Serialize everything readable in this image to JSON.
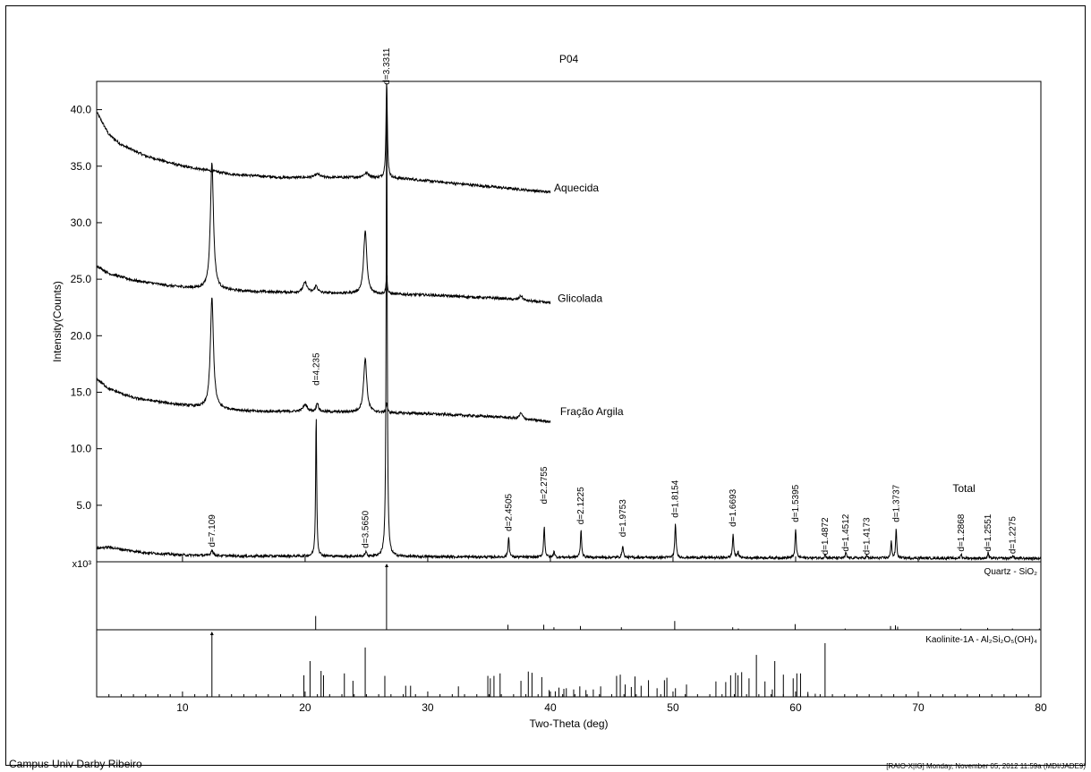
{
  "title": "P04",
  "footer_left": "Campus Univ Darby Ribeiro",
  "footer_right": "[RAIO-X|IG] Monday, November 05, 2012 11:59a (MDI/JADE9)",
  "chart_data": {
    "type": "line",
    "title": "P04",
    "xlabel": "Two-Theta (deg)",
    "ylabel": "Intensity(Counts)",
    "y_multiplier_label": "x10³",
    "xlim": [
      3,
      80
    ],
    "ylim": [
      0,
      42.5
    ],
    "xticks": [
      10,
      20,
      30,
      40,
      50,
      60,
      70,
      80
    ],
    "yticks": [
      5.0,
      10.0,
      15.0,
      20.0,
      25.0,
      30.0,
      35.0,
      40.0
    ],
    "grid": false,
    "legend": "none",
    "series": [
      {
        "name": "Aquecida",
        "x_range": [
          3,
          40
        ],
        "baseline": [
          [
            3,
            39.8
          ],
          [
            4,
            37.8
          ],
          [
            5,
            36.9
          ],
          [
            7,
            35.9
          ],
          [
            10,
            35.0
          ],
          [
            14,
            34.3
          ],
          [
            18,
            34.0
          ],
          [
            24,
            34.0
          ],
          [
            28,
            33.9
          ],
          [
            32,
            33.5
          ],
          [
            36,
            33.1
          ],
          [
            40,
            32.7
          ]
        ],
        "peaks": [
          {
            "x": 21.0,
            "height": 0.3,
            "width": 0.5
          },
          {
            "x": 25.0,
            "height": 0.4,
            "width": 0.6
          },
          {
            "x": 26.65,
            "height": 8.6,
            "width": 0.13
          }
        ]
      },
      {
        "name": "Glicolada",
        "x_range": [
          3,
          40
        ],
        "baseline": [
          [
            3,
            26.2
          ],
          [
            4,
            25.5
          ],
          [
            6,
            24.9
          ],
          [
            9,
            24.4
          ],
          [
            12,
            24.1
          ],
          [
            16,
            23.9
          ],
          [
            20,
            23.8
          ],
          [
            26,
            23.7
          ],
          [
            30,
            23.6
          ],
          [
            36,
            23.3
          ],
          [
            40,
            22.9
          ]
        ],
        "peaks": [
          {
            "x": 12.4,
            "height": 11.3,
            "width": 0.3
          },
          {
            "x": 20.0,
            "height": 0.9,
            "width": 0.4
          },
          {
            "x": 20.9,
            "height": 0.6,
            "width": 0.3
          },
          {
            "x": 24.9,
            "height": 5.6,
            "width": 0.3
          },
          {
            "x": 26.65,
            "height": 1.6,
            "width": 0.12
          },
          {
            "x": 37.6,
            "height": 0.4,
            "width": 0.3
          }
        ]
      },
      {
        "name": "Fração Argila",
        "x_range": [
          3,
          40
        ],
        "baseline": [
          [
            3,
            16.2
          ],
          [
            4,
            15.3
          ],
          [
            6,
            14.5
          ],
          [
            9,
            14.0
          ],
          [
            12,
            13.6
          ],
          [
            16,
            13.3
          ],
          [
            20,
            13.3
          ],
          [
            26,
            13.2
          ],
          [
            30,
            13.1
          ],
          [
            36,
            12.8
          ],
          [
            40,
            12.4
          ]
        ],
        "peaks": [
          {
            "x": 12.4,
            "height": 9.8,
            "width": 0.3
          },
          {
            "x": 20.0,
            "height": 0.6,
            "width": 0.4
          },
          {
            "x": 21.0,
            "height": 0.8,
            "width": 0.2
          },
          {
            "x": 24.9,
            "height": 4.8,
            "width": 0.3
          },
          {
            "x": 26.65,
            "height": 0.9,
            "width": 0.12
          },
          {
            "x": 37.6,
            "height": 0.5,
            "width": 0.3
          }
        ]
      },
      {
        "name": "Total",
        "x_range": [
          3,
          80
        ],
        "baseline": [
          [
            3,
            1.2
          ],
          [
            4,
            1.3
          ],
          [
            5,
            1.1
          ],
          [
            7,
            0.8
          ],
          [
            10,
            0.6
          ],
          [
            15,
            0.5
          ],
          [
            20,
            0.5
          ],
          [
            30,
            0.45
          ],
          [
            40,
            0.4
          ],
          [
            60,
            0.35
          ],
          [
            80,
            0.3
          ]
        ],
        "peaks": [
          {
            "x": 12.4,
            "height": 0.5,
            "width": 0.2
          },
          {
            "x": 20.9,
            "height": 12.7,
            "width": 0.1
          },
          {
            "x": 24.95,
            "height": 0.4,
            "width": 0.15
          },
          {
            "x": 26.65,
            "height": 41.5,
            "width": 0.1
          },
          {
            "x": 36.6,
            "height": 1.8,
            "width": 0.12
          },
          {
            "x": 39.5,
            "height": 2.7,
            "width": 0.12
          },
          {
            "x": 40.3,
            "height": 0.6,
            "width": 0.1
          },
          {
            "x": 42.5,
            "height": 2.4,
            "width": 0.12
          },
          {
            "x": 45.9,
            "height": 1.1,
            "width": 0.12
          },
          {
            "x": 50.2,
            "height": 3.0,
            "width": 0.12
          },
          {
            "x": 54.9,
            "height": 2.1,
            "width": 0.12
          },
          {
            "x": 55.3,
            "height": 0.6,
            "width": 0.1
          },
          {
            "x": 60.0,
            "height": 2.5,
            "width": 0.12
          },
          {
            "x": 62.4,
            "height": 0.3,
            "width": 0.1
          },
          {
            "x": 64.1,
            "height": 0.5,
            "width": 0.1
          },
          {
            "x": 65.8,
            "height": 0.2,
            "width": 0.1
          },
          {
            "x": 67.8,
            "height": 1.6,
            "width": 0.1
          },
          {
            "x": 68.2,
            "height": 2.7,
            "width": 0.1
          },
          {
            "x": 73.5,
            "height": 0.4,
            "width": 0.1
          },
          {
            "x": 75.7,
            "height": 0.5,
            "width": 0.1
          },
          {
            "x": 77.7,
            "height": 0.3,
            "width": 0.1
          }
        ]
      }
    ],
    "d_spacing_labels": [
      {
        "text": "d=7.109",
        "x": 12.4,
        "y": 1.3
      },
      {
        "text": "d=4.235",
        "x": 20.9,
        "y": 15.6
      },
      {
        "text": "d=3.5650",
        "x": 24.95,
        "y": 1.2
      },
      {
        "text": "d=3.3311",
        "x": 26.65,
        "y": 42.2
      },
      {
        "text": "d=2.4505",
        "x": 36.6,
        "y": 2.7
      },
      {
        "text": "d=2.2755",
        "x": 39.5,
        "y": 5.1
      },
      {
        "text": "d=2.1225",
        "x": 42.5,
        "y": 3.3
      },
      {
        "text": "d=1.9753",
        "x": 45.9,
        "y": 2.2
      },
      {
        "text": "d=1.8154",
        "x": 50.2,
        "y": 3.9
      },
      {
        "text": "d=1.6693",
        "x": 54.9,
        "y": 3.1
      },
      {
        "text": "d=1.5395",
        "x": 60.0,
        "y": 3.5
      },
      {
        "text": "d=1.4872",
        "x": 62.4,
        "y": 0.6
      },
      {
        "text": "d=1.4512",
        "x": 64.1,
        "y": 0.9
      },
      {
        "text": "d=1.4173",
        "x": 65.8,
        "y": 0.6
      },
      {
        "text": "d=1.3737",
        "x": 68.2,
        "y": 3.5
      },
      {
        "text": "d=1.2868",
        "x": 73.5,
        "y": 0.9
      },
      {
        "text": "d=1.2551",
        "x": 75.7,
        "y": 0.9
      },
      {
        "text": "d=1.2275",
        "x": 77.7,
        "y": 0.7
      }
    ],
    "series_labels": [
      {
        "text": "Aquecida",
        "x": 40.3,
        "y": 33.1
      },
      {
        "text": "Glicolada",
        "x": 40.6,
        "y": 23.3
      },
      {
        "text": "Fração Argila",
        "x": 40.8,
        "y": 13.3
      },
      {
        "text": "Total",
        "x": 72.8,
        "y": 6.5
      }
    ],
    "reference_patterns": [
      {
        "name": "Quartz - SiO₂",
        "marker_x": 26.65,
        "sticks": [
          {
            "x": 20.86,
            "i": 22
          },
          {
            "x": 26.64,
            "i": 100
          },
          {
            "x": 36.54,
            "i": 8
          },
          {
            "x": 39.46,
            "i": 8
          },
          {
            "x": 40.29,
            "i": 4
          },
          {
            "x": 42.45,
            "i": 6
          },
          {
            "x": 45.79,
            "i": 4
          },
          {
            "x": 50.14,
            "i": 14
          },
          {
            "x": 54.87,
            "i": 4
          },
          {
            "x": 55.33,
            "i": 2
          },
          {
            "x": 59.96,
            "i": 9
          },
          {
            "x": 64.04,
            "i": 2
          },
          {
            "x": 67.74,
            "i": 6
          },
          {
            "x": 68.14,
            "i": 7
          },
          {
            "x": 68.32,
            "i": 5
          },
          {
            "x": 73.46,
            "i": 2
          },
          {
            "x": 75.66,
            "i": 3
          },
          {
            "x": 77.68,
            "i": 2
          },
          {
            "x": 79.88,
            "i": 2
          }
        ]
      },
      {
        "name": "Kaolinite-1A - Al₂Si₂O₅(OH)₄",
        "marker_x": 12.4,
        "sticks": [
          {
            "x": 12.4,
            "i": 100
          },
          {
            "x": 19.9,
            "i": 35
          },
          {
            "x": 20.4,
            "i": 58
          },
          {
            "x": 21.3,
            "i": 42
          },
          {
            "x": 21.5,
            "i": 35
          },
          {
            "x": 23.2,
            "i": 38
          },
          {
            "x": 23.9,
            "i": 26
          },
          {
            "x": 24.9,
            "i": 80
          },
          {
            "x": 26.5,
            "i": 34
          },
          {
            "x": 28.2,
            "i": 18
          },
          {
            "x": 28.6,
            "i": 18
          },
          {
            "x": 32.5,
            "i": 17
          },
          {
            "x": 34.9,
            "i": 34
          },
          {
            "x": 35.1,
            "i": 30
          },
          {
            "x": 35.4,
            "i": 34
          },
          {
            "x": 35.9,
            "i": 38
          },
          {
            "x": 37.6,
            "i": 26
          },
          {
            "x": 38.2,
            "i": 41
          },
          {
            "x": 38.5,
            "i": 39
          },
          {
            "x": 39.3,
            "i": 32
          },
          {
            "x": 39.9,
            "i": 11
          },
          {
            "x": 40.4,
            "i": 9
          },
          {
            "x": 40.7,
            "i": 15
          },
          {
            "x": 41.1,
            "i": 13
          },
          {
            "x": 41.3,
            "i": 14
          },
          {
            "x": 41.9,
            "i": 12
          },
          {
            "x": 42.4,
            "i": 17
          },
          {
            "x": 42.9,
            "i": 11
          },
          {
            "x": 43.5,
            "i": 12
          },
          {
            "x": 44.1,
            "i": 17
          },
          {
            "x": 45.4,
            "i": 34
          },
          {
            "x": 45.7,
            "i": 36
          },
          {
            "x": 46.1,
            "i": 20
          },
          {
            "x": 46.6,
            "i": 16
          },
          {
            "x": 46.9,
            "i": 33
          },
          {
            "x": 47.4,
            "i": 18
          },
          {
            "x": 48.0,
            "i": 27
          },
          {
            "x": 48.7,
            "i": 14
          },
          {
            "x": 49.3,
            "i": 27
          },
          {
            "x": 49.5,
            "i": 31
          },
          {
            "x": 50.2,
            "i": 14
          },
          {
            "x": 51.1,
            "i": 20
          },
          {
            "x": 53.5,
            "i": 25
          },
          {
            "x": 54.3,
            "i": 24
          },
          {
            "x": 54.7,
            "i": 35
          },
          {
            "x": 55.1,
            "i": 39
          },
          {
            "x": 55.3,
            "i": 35
          },
          {
            "x": 55.6,
            "i": 40
          },
          {
            "x": 56.2,
            "i": 30
          },
          {
            "x": 56.8,
            "i": 68
          },
          {
            "x": 57.5,
            "i": 25
          },
          {
            "x": 58.1,
            "i": 12
          },
          {
            "x": 58.3,
            "i": 58
          },
          {
            "x": 59.0,
            "i": 36
          },
          {
            "x": 59.8,
            "i": 30
          },
          {
            "x": 60.1,
            "i": 38
          },
          {
            "x": 60.4,
            "i": 38
          },
          {
            "x": 61.0,
            "i": 8
          },
          {
            "x": 61.6,
            "i": 5
          },
          {
            "x": 62.4,
            "i": 87
          }
        ]
      }
    ]
  }
}
